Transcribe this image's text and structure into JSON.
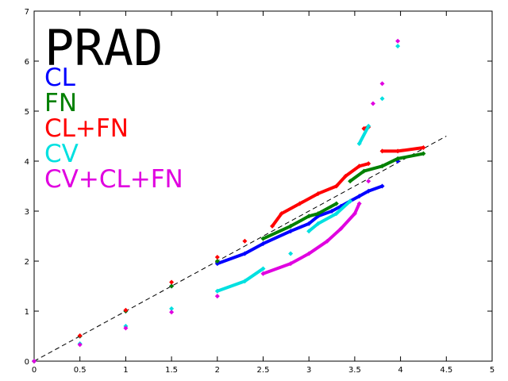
{
  "chart_data": {
    "type": "scatter",
    "title": "PRAD",
    "xlim": [
      0,
      5
    ],
    "ylim": [
      0,
      7
    ],
    "xticks": [
      0,
      0.5,
      1,
      1.5,
      2,
      2.5,
      3,
      3.5,
      4,
      4.5,
      5
    ],
    "yticks": [
      0,
      1,
      2,
      3,
      4,
      5,
      6,
      7
    ],
    "reference_line": {
      "x": [
        0,
        4.5
      ],
      "y": [
        0,
        4.5
      ]
    },
    "series": [
      {
        "name": "CL",
        "color": "#0000ff",
        "x": [
          0,
          0.5,
          1,
          1.5,
          2,
          2.3,
          2.5,
          2.8,
          3,
          3.1,
          3.25,
          3.35,
          3.45,
          3.55,
          3.65,
          3.8,
          3.97
        ],
        "values": [
          0,
          0.5,
          1,
          1.5,
          1.95,
          2.15,
          2.35,
          2.6,
          2.75,
          2.9,
          3.0,
          3.1,
          3.2,
          3.3,
          3.4,
          3.5,
          4.0
        ]
      },
      {
        "name": "FN",
        "color": "#008000",
        "x": [
          0,
          0.5,
          1,
          1.5,
          2,
          2.5,
          2.8,
          3,
          3.1,
          3.3,
          3.45,
          3.6,
          3.8,
          3.97,
          4.25
        ],
        "values": [
          0,
          0.5,
          1,
          1.5,
          2.0,
          2.45,
          2.7,
          2.9,
          2.95,
          3.15,
          3.6,
          3.8,
          3.9,
          4.05,
          4.15
        ]
      },
      {
        "name": "CL+FN",
        "color": "#ff0000",
        "x": [
          0,
          0.5,
          1,
          1.5,
          2,
          2.3,
          2.6,
          2.7,
          2.9,
          3.1,
          3.3,
          3.4,
          3.55,
          3.65,
          3.6,
          3.65,
          3.8,
          3.97,
          4.25
        ],
        "values": [
          0,
          0.51,
          1.02,
          1.58,
          2.08,
          2.4,
          2.7,
          2.95,
          3.15,
          3.35,
          3.5,
          3.7,
          3.9,
          3.95,
          4.65,
          4.68,
          4.2,
          4.2,
          4.27
        ]
      },
      {
        "name": "CV",
        "color": "#00e0e0",
        "x": [
          0,
          0.5,
          1,
          1.5,
          2,
          2.3,
          2.5,
          2.8,
          3,
          3.1,
          3.3,
          3.45,
          3.55,
          3.65,
          3.8,
          3.97
        ],
        "values": [
          0,
          0.35,
          0.7,
          1.05,
          1.4,
          1.6,
          1.85,
          2.15,
          2.6,
          2.75,
          2.95,
          3.2,
          4.35,
          4.7,
          5.25,
          6.3
        ]
      },
      {
        "name": "CV+CL+FN",
        "color": "#e000e0",
        "x": [
          0,
          0.5,
          1,
          1.5,
          2,
          2.5,
          2.8,
          3,
          3.2,
          3.35,
          3.5,
          3.55,
          3.65,
          3.7,
          3.8,
          3.97
        ],
        "values": [
          0,
          0.33,
          0.66,
          0.98,
          1.3,
          1.75,
          1.95,
          2.15,
          2.4,
          2.65,
          2.95,
          3.15,
          3.6,
          5.15,
          5.55,
          6.4
        ]
      }
    ]
  }
}
